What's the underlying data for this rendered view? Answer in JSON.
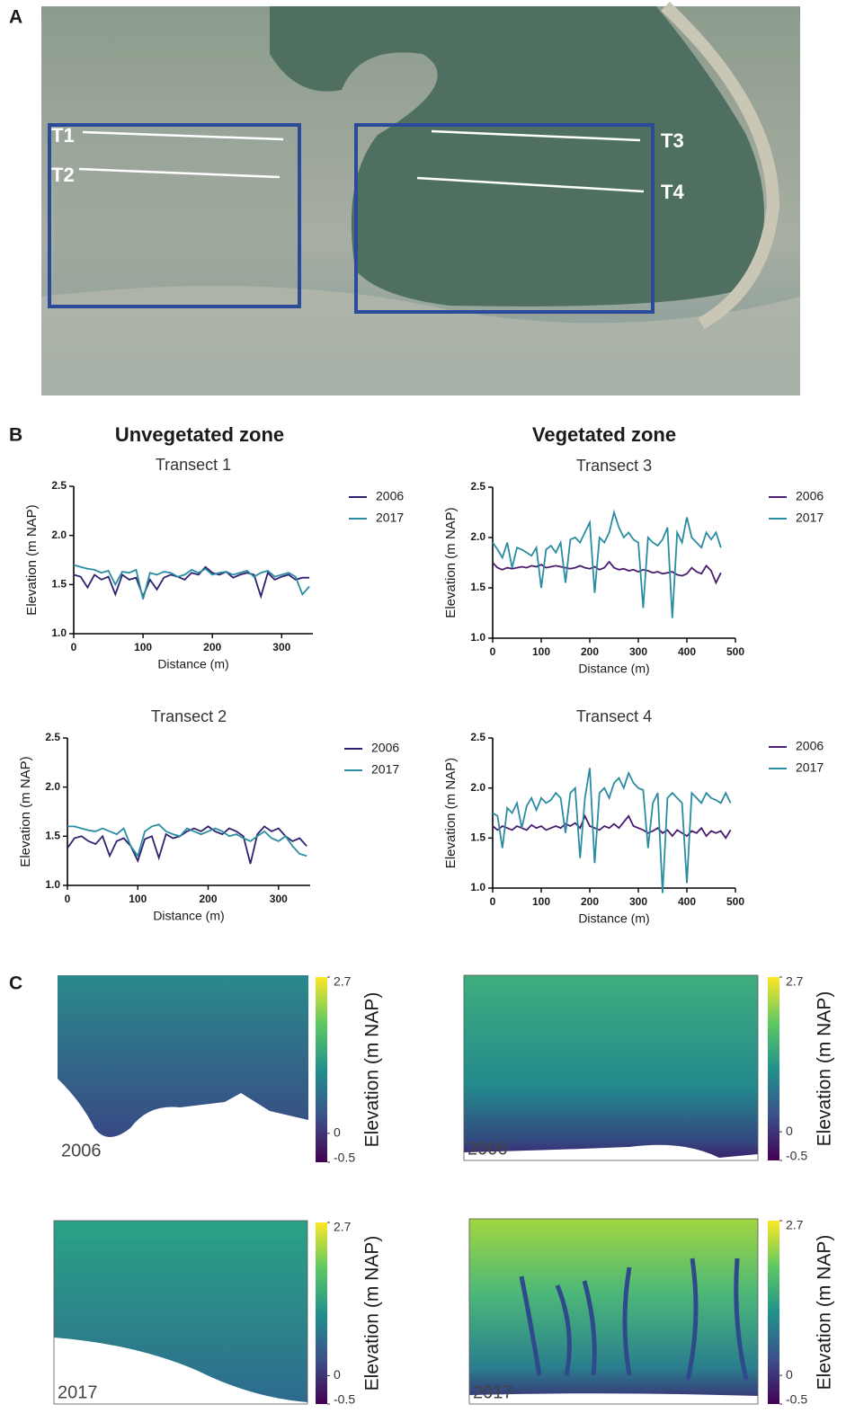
{
  "panels": {
    "a": "A",
    "b": "B",
    "c": "C"
  },
  "map": {
    "transects": [
      "T1",
      "T2",
      "T3",
      "T4"
    ]
  },
  "zone_titles": [
    "Unvegetated zone",
    "Vegetated zone"
  ],
  "chart_data": [
    {
      "type": "line",
      "title": "Transect 1",
      "x_label": "Distance (m)",
      "y_label": "Elevation (m NAP)",
      "xlim": [
        0,
        345
      ],
      "xticks": [
        0,
        100,
        200,
        300
      ],
      "ylim": [
        1,
        2.5
      ],
      "yticks": [
        {
          "value": 1,
          "label": "1.0"
        },
        1.5,
        {
          "value": 2,
          "label": "2.0"
        },
        2.5
      ],
      "x": [
        0,
        10,
        20,
        30,
        40,
        50,
        60,
        70,
        80,
        90,
        100,
        110,
        120,
        130,
        140,
        150,
        160,
        170,
        180,
        190,
        200,
        210,
        220,
        230,
        240,
        250,
        260,
        270,
        280,
        290,
        300,
        310,
        320,
        330,
        340
      ],
      "series": [
        {
          "name": "2006",
          "color": "#2e2170",
          "values": [
            1.6,
            1.58,
            1.47,
            1.6,
            1.55,
            1.58,
            1.4,
            1.6,
            1.55,
            1.57,
            1.38,
            1.55,
            1.45,
            1.57,
            1.6,
            1.58,
            1.55,
            1.62,
            1.6,
            1.68,
            1.62,
            1.6,
            1.63,
            1.57,
            1.6,
            1.62,
            1.6,
            1.38,
            1.62,
            1.55,
            1.58,
            1.6,
            1.55,
            1.57,
            1.57
          ]
        },
        {
          "name": "2017",
          "color": "#2a8ca0",
          "values": [
            1.7,
            1.68,
            1.66,
            1.65,
            1.62,
            1.64,
            1.5,
            1.63,
            1.62,
            1.65,
            1.35,
            1.62,
            1.6,
            1.63,
            1.62,
            1.58,
            1.6,
            1.65,
            1.62,
            1.66,
            1.6,
            1.62,
            1.63,
            1.6,
            1.62,
            1.64,
            1.58,
            1.62,
            1.64,
            1.58,
            1.6,
            1.62,
            1.58,
            1.4,
            1.48
          ]
        }
      ]
    },
    {
      "type": "line",
      "title": "Transect 3",
      "x_label": "Distance (m)",
      "y_label": "Elevation (m NAP)",
      "xlim": [
        0,
        500
      ],
      "xticks": [
        0,
        100,
        200,
        300,
        400,
        500
      ],
      "ylim": [
        1,
        2.5
      ],
      "yticks": [
        {
          "value": 1,
          "label": "1.0"
        },
        1.5,
        {
          "value": 2,
          "label": "2.0"
        },
        2.5
      ],
      "x": [
        0,
        10,
        20,
        30,
        40,
        50,
        60,
        70,
        80,
        90,
        100,
        110,
        120,
        130,
        140,
        150,
        160,
        170,
        180,
        190,
        200,
        210,
        220,
        230,
        240,
        250,
        260,
        270,
        280,
        290,
        300,
        310,
        320,
        330,
        340,
        350,
        360,
        370,
        380,
        390,
        400,
        410,
        420,
        430,
        440,
        450,
        460,
        470
      ],
      "series": [
        {
          "name": "2006",
          "color": "#4a1d6e",
          "values": [
            1.75,
            1.7,
            1.68,
            1.7,
            1.69,
            1.7,
            1.71,
            1.7,
            1.72,
            1.71,
            1.73,
            1.7,
            1.71,
            1.72,
            1.71,
            1.7,
            1.69,
            1.7,
            1.72,
            1.7,
            1.69,
            1.71,
            1.68,
            1.7,
            1.76,
            1.7,
            1.68,
            1.69,
            1.67,
            1.68,
            1.66,
            1.68,
            1.67,
            1.65,
            1.66,
            1.64,
            1.65,
            1.66,
            1.63,
            1.62,
            1.64,
            1.7,
            1.66,
            1.64,
            1.72,
            1.67,
            1.55,
            1.65
          ]
        },
        {
          "name": "2017",
          "color": "#2a8ca0",
          "values": [
            1.95,
            1.88,
            1.8,
            1.95,
            1.7,
            1.9,
            1.88,
            1.85,
            1.82,
            1.9,
            1.5,
            1.88,
            1.92,
            1.85,
            1.95,
            1.55,
            1.98,
            2.0,
            1.95,
            2.05,
            2.15,
            1.45,
            2.0,
            1.95,
            2.05,
            2.25,
            2.1,
            2.0,
            2.05,
            1.98,
            1.95,
            1.3,
            2.0,
            1.95,
            1.92,
            1.98,
            2.1,
            1.2,
            2.05,
            1.95,
            2.2,
            2.0,
            1.95,
            1.9,
            2.05,
            1.98,
            2.05,
            1.9
          ]
        }
      ]
    },
    {
      "type": "line",
      "title": "Transect 2",
      "x_label": "Distance (m)",
      "y_label": "Elevation (m NAP)",
      "xlim": [
        0,
        345
      ],
      "xticks": [
        0,
        100,
        200,
        300
      ],
      "ylim": [
        1,
        2.5
      ],
      "yticks": [
        {
          "value": 1,
          "label": "1.0"
        },
        1.5,
        {
          "value": 2,
          "label": "2.0"
        },
        2.5
      ],
      "x": [
        0,
        10,
        20,
        30,
        40,
        50,
        60,
        70,
        80,
        90,
        100,
        110,
        120,
        130,
        140,
        150,
        160,
        170,
        180,
        190,
        200,
        210,
        220,
        230,
        240,
        250,
        260,
        270,
        280,
        290,
        300,
        310,
        320,
        330,
        340
      ],
      "series": [
        {
          "name": "2006",
          "color": "#2e2170",
          "values": [
            1.38,
            1.48,
            1.5,
            1.45,
            1.42,
            1.5,
            1.3,
            1.45,
            1.48,
            1.4,
            1.25,
            1.47,
            1.5,
            1.28,
            1.52,
            1.48,
            1.5,
            1.55,
            1.58,
            1.55,
            1.6,
            1.55,
            1.52,
            1.58,
            1.55,
            1.5,
            1.22,
            1.52,
            1.6,
            1.55,
            1.58,
            1.5,
            1.45,
            1.48,
            1.4
          ]
        },
        {
          "name": "2017",
          "color": "#2a8ca0",
          "values": [
            1.6,
            1.6,
            1.58,
            1.56,
            1.55,
            1.58,
            1.55,
            1.52,
            1.58,
            1.4,
            1.3,
            1.55,
            1.6,
            1.62,
            1.55,
            1.52,
            1.5,
            1.58,
            1.55,
            1.52,
            1.55,
            1.58,
            1.55,
            1.5,
            1.52,
            1.48,
            1.45,
            1.5,
            1.55,
            1.48,
            1.45,
            1.5,
            1.4,
            1.32,
            1.3
          ]
        }
      ]
    },
    {
      "type": "line",
      "title": "Transect 4",
      "x_label": "Distance (m)",
      "y_label": "Elevation (m NAP)",
      "xlim": [
        0,
        500
      ],
      "xticks": [
        0,
        100,
        200,
        300,
        400,
        500
      ],
      "ylim": [
        1,
        2.5
      ],
      "yticks": [
        {
          "value": 1,
          "label": "1.0"
        },
        1.5,
        {
          "value": 2,
          "label": "2.0"
        },
        2.5
      ],
      "x": [
        0,
        10,
        20,
        30,
        40,
        50,
        60,
        70,
        80,
        90,
        100,
        110,
        120,
        130,
        140,
        150,
        160,
        170,
        180,
        190,
        200,
        210,
        220,
        230,
        240,
        250,
        260,
        270,
        280,
        290,
        300,
        310,
        320,
        330,
        340,
        350,
        360,
        370,
        380,
        390,
        400,
        410,
        420,
        430,
        440,
        450,
        460,
        470,
        480,
        490
      ],
      "series": [
        {
          "name": "2006",
          "color": "#4a1d6e",
          "values": [
            1.62,
            1.58,
            1.62,
            1.6,
            1.58,
            1.62,
            1.6,
            1.58,
            1.63,
            1.6,
            1.62,
            1.58,
            1.6,
            1.62,
            1.6,
            1.64,
            1.62,
            1.65,
            1.6,
            1.72,
            1.62,
            1.6,
            1.58,
            1.62,
            1.6,
            1.64,
            1.6,
            1.66,
            1.72,
            1.62,
            1.6,
            1.58,
            1.55,
            1.57,
            1.6,
            1.55,
            1.58,
            1.52,
            1.58,
            1.55,
            1.52,
            1.57,
            1.55,
            1.6,
            1.52,
            1.57,
            1.55,
            1.57,
            1.5,
            1.58
          ]
        },
        {
          "name": "2017",
          "color": "#2a8ca0",
          "values": [
            1.75,
            1.72,
            1.4,
            1.8,
            1.75,
            1.85,
            1.6,
            1.82,
            1.9,
            1.78,
            1.9,
            1.85,
            1.88,
            1.95,
            1.9,
            1.55,
            1.95,
            2.0,
            1.3,
            1.9,
            2.2,
            1.25,
            1.95,
            2.0,
            1.9,
            2.05,
            2.1,
            2.0,
            2.15,
            2.05,
            2.0,
            1.98,
            1.4,
            1.85,
            1.95,
            0.95,
            1.9,
            1.95,
            1.9,
            1.85,
            1.05,
            1.95,
            1.9,
            1.85,
            1.95,
            1.9,
            1.88,
            1.85,
            1.95,
            1.85
          ]
        }
      ]
    }
  ],
  "elevation_maps": [
    {
      "year": "2006",
      "colorbar": {
        "label": "Elevation (m NAP)",
        "lim": [
          -0.5,
          2.7
        ],
        "ticks": [
          2.7,
          0,
          -0.5
        ]
      }
    },
    {
      "year": "2006",
      "colorbar": {
        "label": "Elevation (m NAP)",
        "lim": [
          -0.5,
          2.7
        ],
        "ticks": [
          2.7,
          0,
          -0.5
        ]
      }
    },
    {
      "year": "2017",
      "colorbar": {
        "label": "Elevation (m NAP)",
        "lim": [
          -0.5,
          2.7
        ],
        "ticks": [
          2.7,
          0,
          -0.5
        ]
      }
    },
    {
      "year": "2017",
      "colorbar": {
        "label": "Elevation (m NAP)",
        "lim": [
          -0.5,
          2.7
        ],
        "ticks": [
          2.7,
          0,
          -0.5
        ]
      }
    }
  ]
}
